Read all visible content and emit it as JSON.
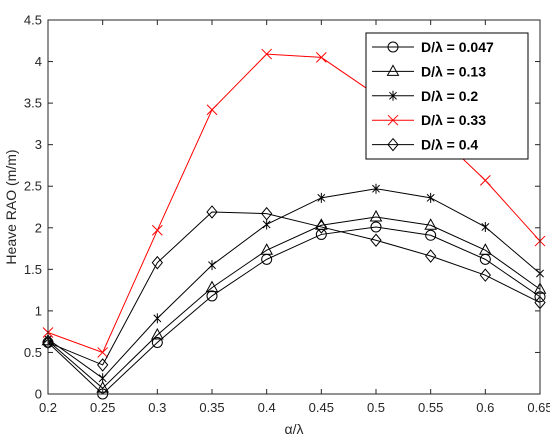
{
  "chart_data": {
    "type": "line",
    "title": "",
    "xlabel": "α/λ",
    "ylabel": "Heave RAO (m/m)",
    "xlim": [
      0.2,
      0.65
    ],
    "ylim": [
      0,
      4.5
    ],
    "x": [
      0.2,
      0.25,
      0.3,
      0.35,
      0.4,
      0.45,
      0.5,
      0.55,
      0.6,
      0.65
    ],
    "x_tick_labels": [
      "0.2",
      "0.25",
      "0.3",
      "0.35",
      "0.4",
      "0.45",
      "0.5",
      "0.55",
      "0.6",
      "0.65"
    ],
    "y_ticks": [
      0,
      0.5,
      1,
      1.5,
      2,
      2.5,
      3,
      3.5,
      4,
      4.5
    ],
    "y_tick_labels": [
      "0",
      "0.5",
      "1",
      "1.5",
      "2",
      "2.5",
      "3",
      "3.5",
      "4",
      "4.5"
    ],
    "grid": false,
    "legend_position": "top-right",
    "series": [
      {
        "name": "D/λ = 0.047",
        "color": "#000000",
        "marker": "circle",
        "values": [
          0.62,
          0.0,
          0.62,
          1.18,
          1.62,
          1.92,
          2.01,
          1.91,
          1.62,
          1.17
        ]
      },
      {
        "name": "D/λ = 0.13",
        "color": "#000000",
        "marker": "triangle",
        "values": [
          0.64,
          0.07,
          0.71,
          1.28,
          1.73,
          2.03,
          2.13,
          2.03,
          1.73,
          1.26
        ]
      },
      {
        "name": "D/λ = 0.2",
        "color": "#000000",
        "marker": "asterisk",
        "values": [
          0.66,
          0.19,
          0.91,
          1.55,
          2.04,
          2.36,
          2.47,
          2.36,
          2.01,
          1.45
        ]
      },
      {
        "name": "D/λ = 0.33",
        "color": "#ff0000",
        "marker": "x",
        "values": [
          0.74,
          0.5,
          1.97,
          3.42,
          4.09,
          4.05,
          3.6,
          3.2,
          2.57,
          1.84
        ]
      },
      {
        "name": "D/λ = 0.4",
        "color": "#000000",
        "marker": "diamond",
        "values": [
          0.62,
          0.35,
          1.58,
          2.19,
          2.17,
          2.01,
          1.85,
          1.66,
          1.43,
          1.1
        ]
      }
    ]
  }
}
